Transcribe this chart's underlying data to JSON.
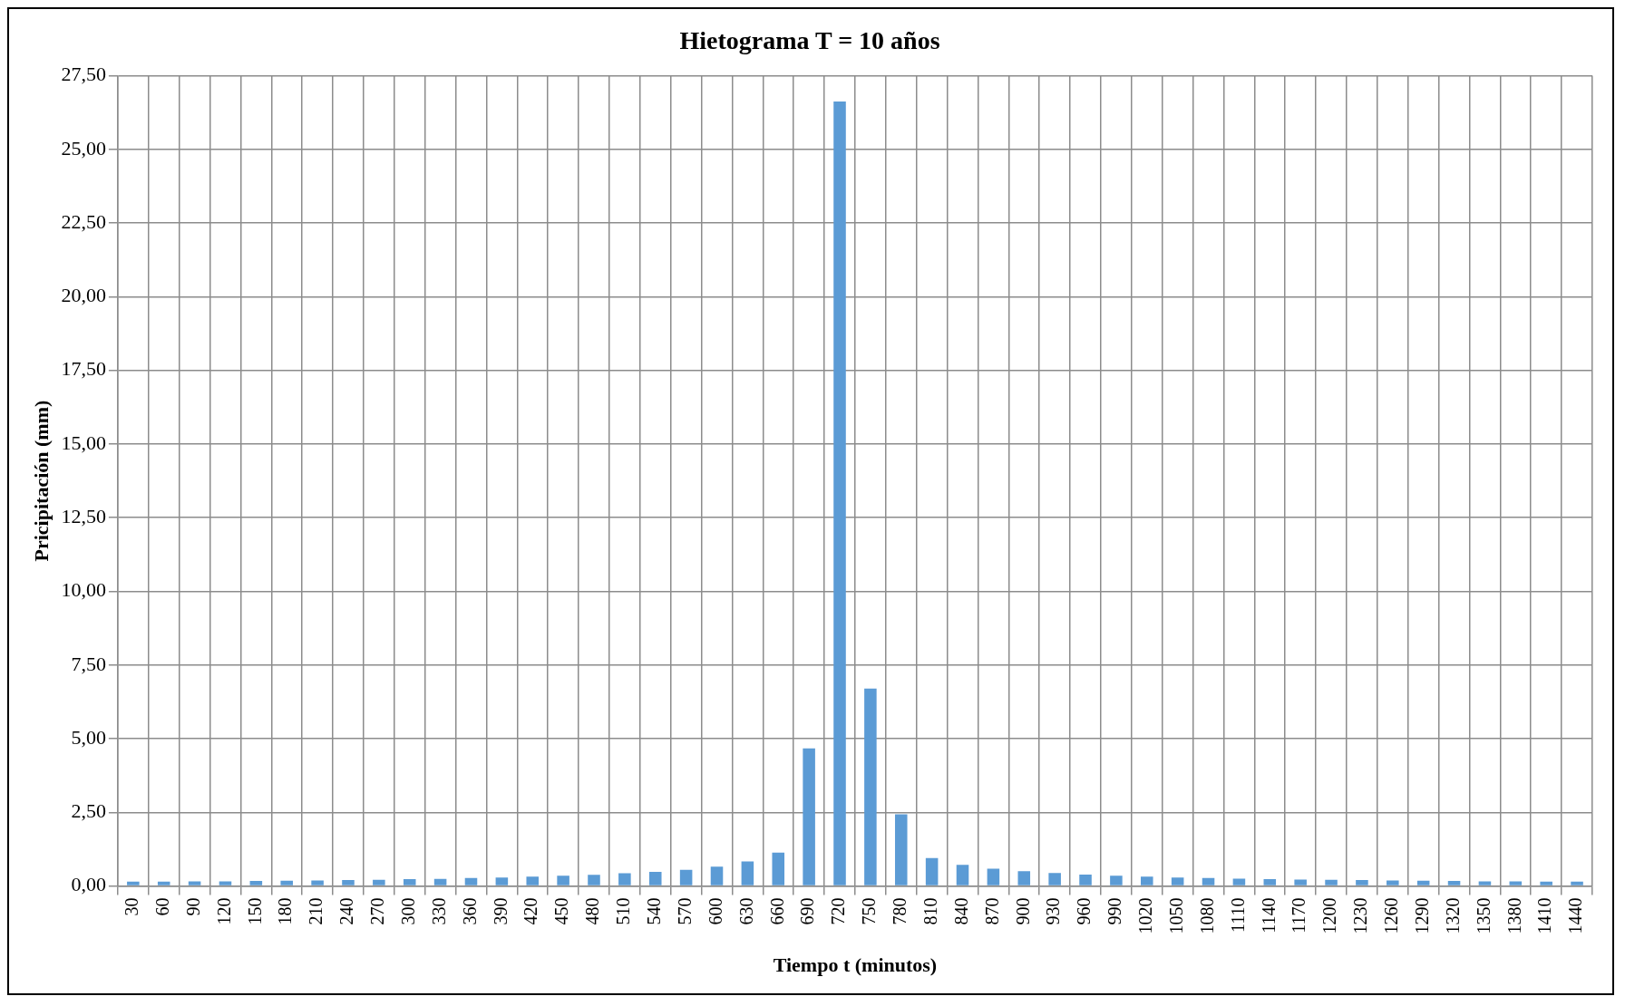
{
  "chart_data": {
    "type": "bar",
    "title": "Hietograma T = 10 años",
    "xlabel": "Tiempo t (minutos)",
    "ylabel": "Pricipitación (mm)",
    "categories": [
      "30",
      "60",
      "90",
      "120",
      "150",
      "180",
      "210",
      "240",
      "270",
      "300",
      "330",
      "360",
      "390",
      "420",
      "450",
      "480",
      "510",
      "540",
      "570",
      "600",
      "630",
      "660",
      "690",
      "720",
      "750",
      "780",
      "810",
      "840",
      "870",
      "900",
      "930",
      "960",
      "990",
      "1020",
      "1050",
      "1080",
      "1110",
      "1140",
      "1170",
      "1200",
      "1230",
      "1260",
      "1290",
      "1320",
      "1350",
      "1380",
      "1410",
      "1440"
    ],
    "values": [
      0.15,
      0.15,
      0.16,
      0.16,
      0.17,
      0.18,
      0.19,
      0.2,
      0.21,
      0.23,
      0.24,
      0.27,
      0.29,
      0.32,
      0.35,
      0.38,
      0.43,
      0.48,
      0.55,
      0.66,
      0.83,
      1.13,
      4.67,
      26.63,
      6.7,
      2.43,
      0.95,
      0.72,
      0.59,
      0.5,
      0.44,
      0.39,
      0.35,
      0.32,
      0.29,
      0.27,
      0.25,
      0.23,
      0.22,
      0.21,
      0.2,
      0.19,
      0.18,
      0.17,
      0.16,
      0.16,
      0.15,
      0.15
    ],
    "color": "#5b9bd5",
    "ylim": [
      0,
      27.5
    ],
    "yticks": [
      {
        "value": 0,
        "label": "0,00"
      },
      {
        "value": 2.5,
        "label": "2,50"
      },
      {
        "value": 5,
        "label": "5,00"
      },
      {
        "value": 7.5,
        "label": "7,50"
      },
      {
        "value": 10,
        "label": "10,00"
      },
      {
        "value": 12.5,
        "label": "12,50"
      },
      {
        "value": 15,
        "label": "15,00"
      },
      {
        "value": 17.5,
        "label": "17,50"
      },
      {
        "value": 20,
        "label": "20,00"
      },
      {
        "value": 22.5,
        "label": "22,50"
      },
      {
        "value": 25,
        "label": "25,00"
      },
      {
        "value": 27.5,
        "label": "27,50"
      }
    ],
    "grid": true
  }
}
